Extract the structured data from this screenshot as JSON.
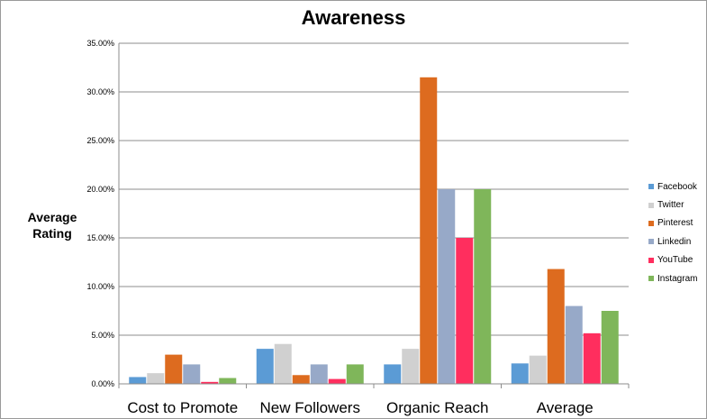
{
  "chart_data": {
    "type": "bar",
    "title": "Awareness",
    "ylabel": [
      "Average",
      "Rating"
    ],
    "xlabel": "",
    "ylim": [
      0,
      0.35
    ],
    "yticks": [
      "0.00%",
      "5.00%",
      "10.00%",
      "15.00%",
      "20.00%",
      "25.00%",
      "30.00%",
      "35.00%"
    ],
    "grid": true,
    "legend_position": "right",
    "categories": [
      "Cost to Promote",
      "New Followers",
      "Organic Reach",
      "Average"
    ],
    "series": [
      {
        "name": "Facebook",
        "color": "#5b9bd5",
        "values": [
          0.007,
          0.036,
          0.02,
          0.021
        ]
      },
      {
        "name": "Twitter",
        "color": "#d0d0d0",
        "values": [
          0.011,
          0.041,
          0.036,
          0.029
        ]
      },
      {
        "name": "Pinterest",
        "color": "#dd6b1f",
        "values": [
          0.03,
          0.009,
          0.315,
          0.118
        ]
      },
      {
        "name": "Linkedin",
        "color": "#97a9c8",
        "values": [
          0.02,
          0.02,
          0.2,
          0.08
        ]
      },
      {
        "name": "YouTube",
        "color": "#ff2e5e",
        "values": [
          0.002,
          0.005,
          0.15,
          0.052
        ]
      },
      {
        "name": "Instagram",
        "color": "#7fb65a",
        "values": [
          0.006,
          0.02,
          0.2,
          0.075
        ]
      }
    ]
  }
}
